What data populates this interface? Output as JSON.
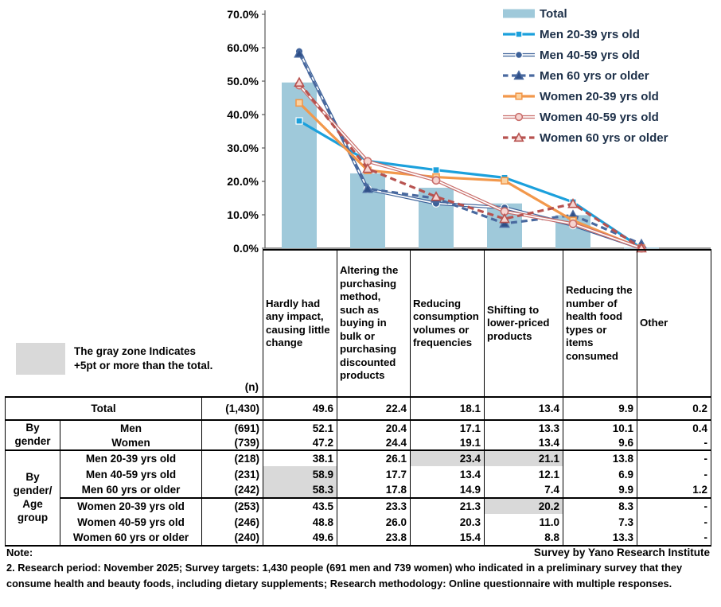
{
  "chart_data": {
    "type": "bar+line",
    "title": "",
    "ylabel": "",
    "xlabel": "",
    "ylim": [
      0,
      70
    ],
    "ytick_step": 10,
    "ytick_suffix": "%",
    "legend_position": "top-right",
    "grid": false,
    "categories": [
      "Hardly had any impact, causing little change",
      "Altering the purchasing method, such as buying in bulk or purchasing discounted products",
      "Reducing consumption volumes or frequencies",
      "Shifting to lower-priced products",
      "Reducing the number of health food types or items consumed",
      "Other"
    ],
    "bar_series": {
      "name": "Total",
      "color": "#9FC9DA",
      "values": [
        49.6,
        22.4,
        18.1,
        13.4,
        9.9,
        0.2
      ]
    },
    "line_series": [
      {
        "name": "Men 20-39 yrs old",
        "values": [
          38.1,
          26.1,
          23.4,
          21.1,
          13.8,
          0
        ],
        "color": "#1BA0DC",
        "style": "solid",
        "marker": "square",
        "marker_fill": "#1BA0DC"
      },
      {
        "name": "Men 40-59 yrs old",
        "values": [
          58.9,
          17.7,
          13.4,
          12.1,
          6.9,
          0
        ],
        "color": "#3C6199",
        "style": "double",
        "marker": "circle",
        "marker_fill": "#3C6199"
      },
      {
        "name": "Men 60 yrs or older",
        "values": [
          58.3,
          17.8,
          14.9,
          7.4,
          9.9,
          1.2
        ],
        "color": "#49699F",
        "style": "dashed",
        "marker": "triangle",
        "marker_fill": "#2F4F87"
      },
      {
        "name": "Women 20-39 yrs old",
        "values": [
          43.5,
          23.3,
          21.3,
          20.2,
          8.3,
          0
        ],
        "color": "#F2984B",
        "style": "solid",
        "marker": "square",
        "marker_fill": "#FBD2A0"
      },
      {
        "name": "Women 40-59 yrs old",
        "values": [
          48.8,
          26.0,
          20.3,
          11.0,
          7.3,
          0
        ],
        "color": "#C96E6B",
        "style": "double",
        "marker": "circle",
        "marker_fill": "#F6D4D1"
      },
      {
        "name": "Women 60 yrs or older",
        "values": [
          49.6,
          23.8,
          15.4,
          8.8,
          13.3,
          0
        ],
        "color": "#B7524F",
        "style": "dashed",
        "marker": "triangle",
        "marker_fill": "#F6D4D1"
      }
    ]
  },
  "gray_note": {
    "swatch_color": "#D9D9D9",
    "line1": "The gray zone Indicates",
    "line2": "+5pt or more than the total."
  },
  "table": {
    "n_header": "(n)",
    "rows": [
      {
        "group": null,
        "label": "Total",
        "n": "(1,430)",
        "values": [
          "49.6",
          "22.4",
          "18.1",
          "13.4",
          "9.9",
          "0.2"
        ],
        "gray": []
      },
      {
        "group": "By\ngender",
        "label": "Men",
        "n": "(691)",
        "values": [
          "52.1",
          "20.4",
          "17.1",
          "13.3",
          "10.1",
          "0.4"
        ],
        "gray": []
      },
      {
        "group": null,
        "label": "Women",
        "n": "(739)",
        "values": [
          "47.2",
          "24.4",
          "19.1",
          "13.4",
          "9.6",
          "-"
        ],
        "gray": []
      },
      {
        "group": "By\ngender/\nAge\ngroup",
        "label": "Men 20-39 yrs old",
        "n": "(218)",
        "values": [
          "38.1",
          "26.1",
          "23.4",
          "21.1",
          "13.8",
          "-"
        ],
        "gray": [
          2,
          3
        ]
      },
      {
        "group": null,
        "label": "Men 40-59 yrs old",
        "n": "(231)",
        "values": [
          "58.9",
          "17.7",
          "13.4",
          "12.1",
          "6.9",
          "-"
        ],
        "gray": [
          0
        ]
      },
      {
        "group": null,
        "label": "Men 60 yrs or older",
        "n": "(242)",
        "values": [
          "58.3",
          "17.8",
          "14.9",
          "7.4",
          "9.9",
          "1.2"
        ],
        "gray": [
          0
        ]
      },
      {
        "group": null,
        "label": "Women 20-39 yrs old",
        "n": "(253)",
        "values": [
          "43.5",
          "23.3",
          "21.3",
          "20.2",
          "8.3",
          "-"
        ],
        "gray": [
          3
        ]
      },
      {
        "group": null,
        "label": "Women 40-59 yrs old",
        "n": "(246)",
        "values": [
          "48.8",
          "26.0",
          "20.3",
          "11.0",
          "7.3",
          "-"
        ],
        "gray": []
      },
      {
        "group": null,
        "label": "Women 60 yrs or older",
        "n": "(240)",
        "values": [
          "49.6",
          "23.8",
          "15.4",
          "8.8",
          "13.3",
          "-"
        ],
        "gray": []
      }
    ]
  },
  "notes": {
    "note_label": "Note:",
    "source": "Survey by Yano Research Institute",
    "body": "2. Research period: November 2025; Survey targets: 1,430 people (691 men and 739 women) who indicated in a preliminary survey that they consume health and beauty foods, including dietary supplements; Research methodology: Online questionnaire with multiple responses."
  }
}
